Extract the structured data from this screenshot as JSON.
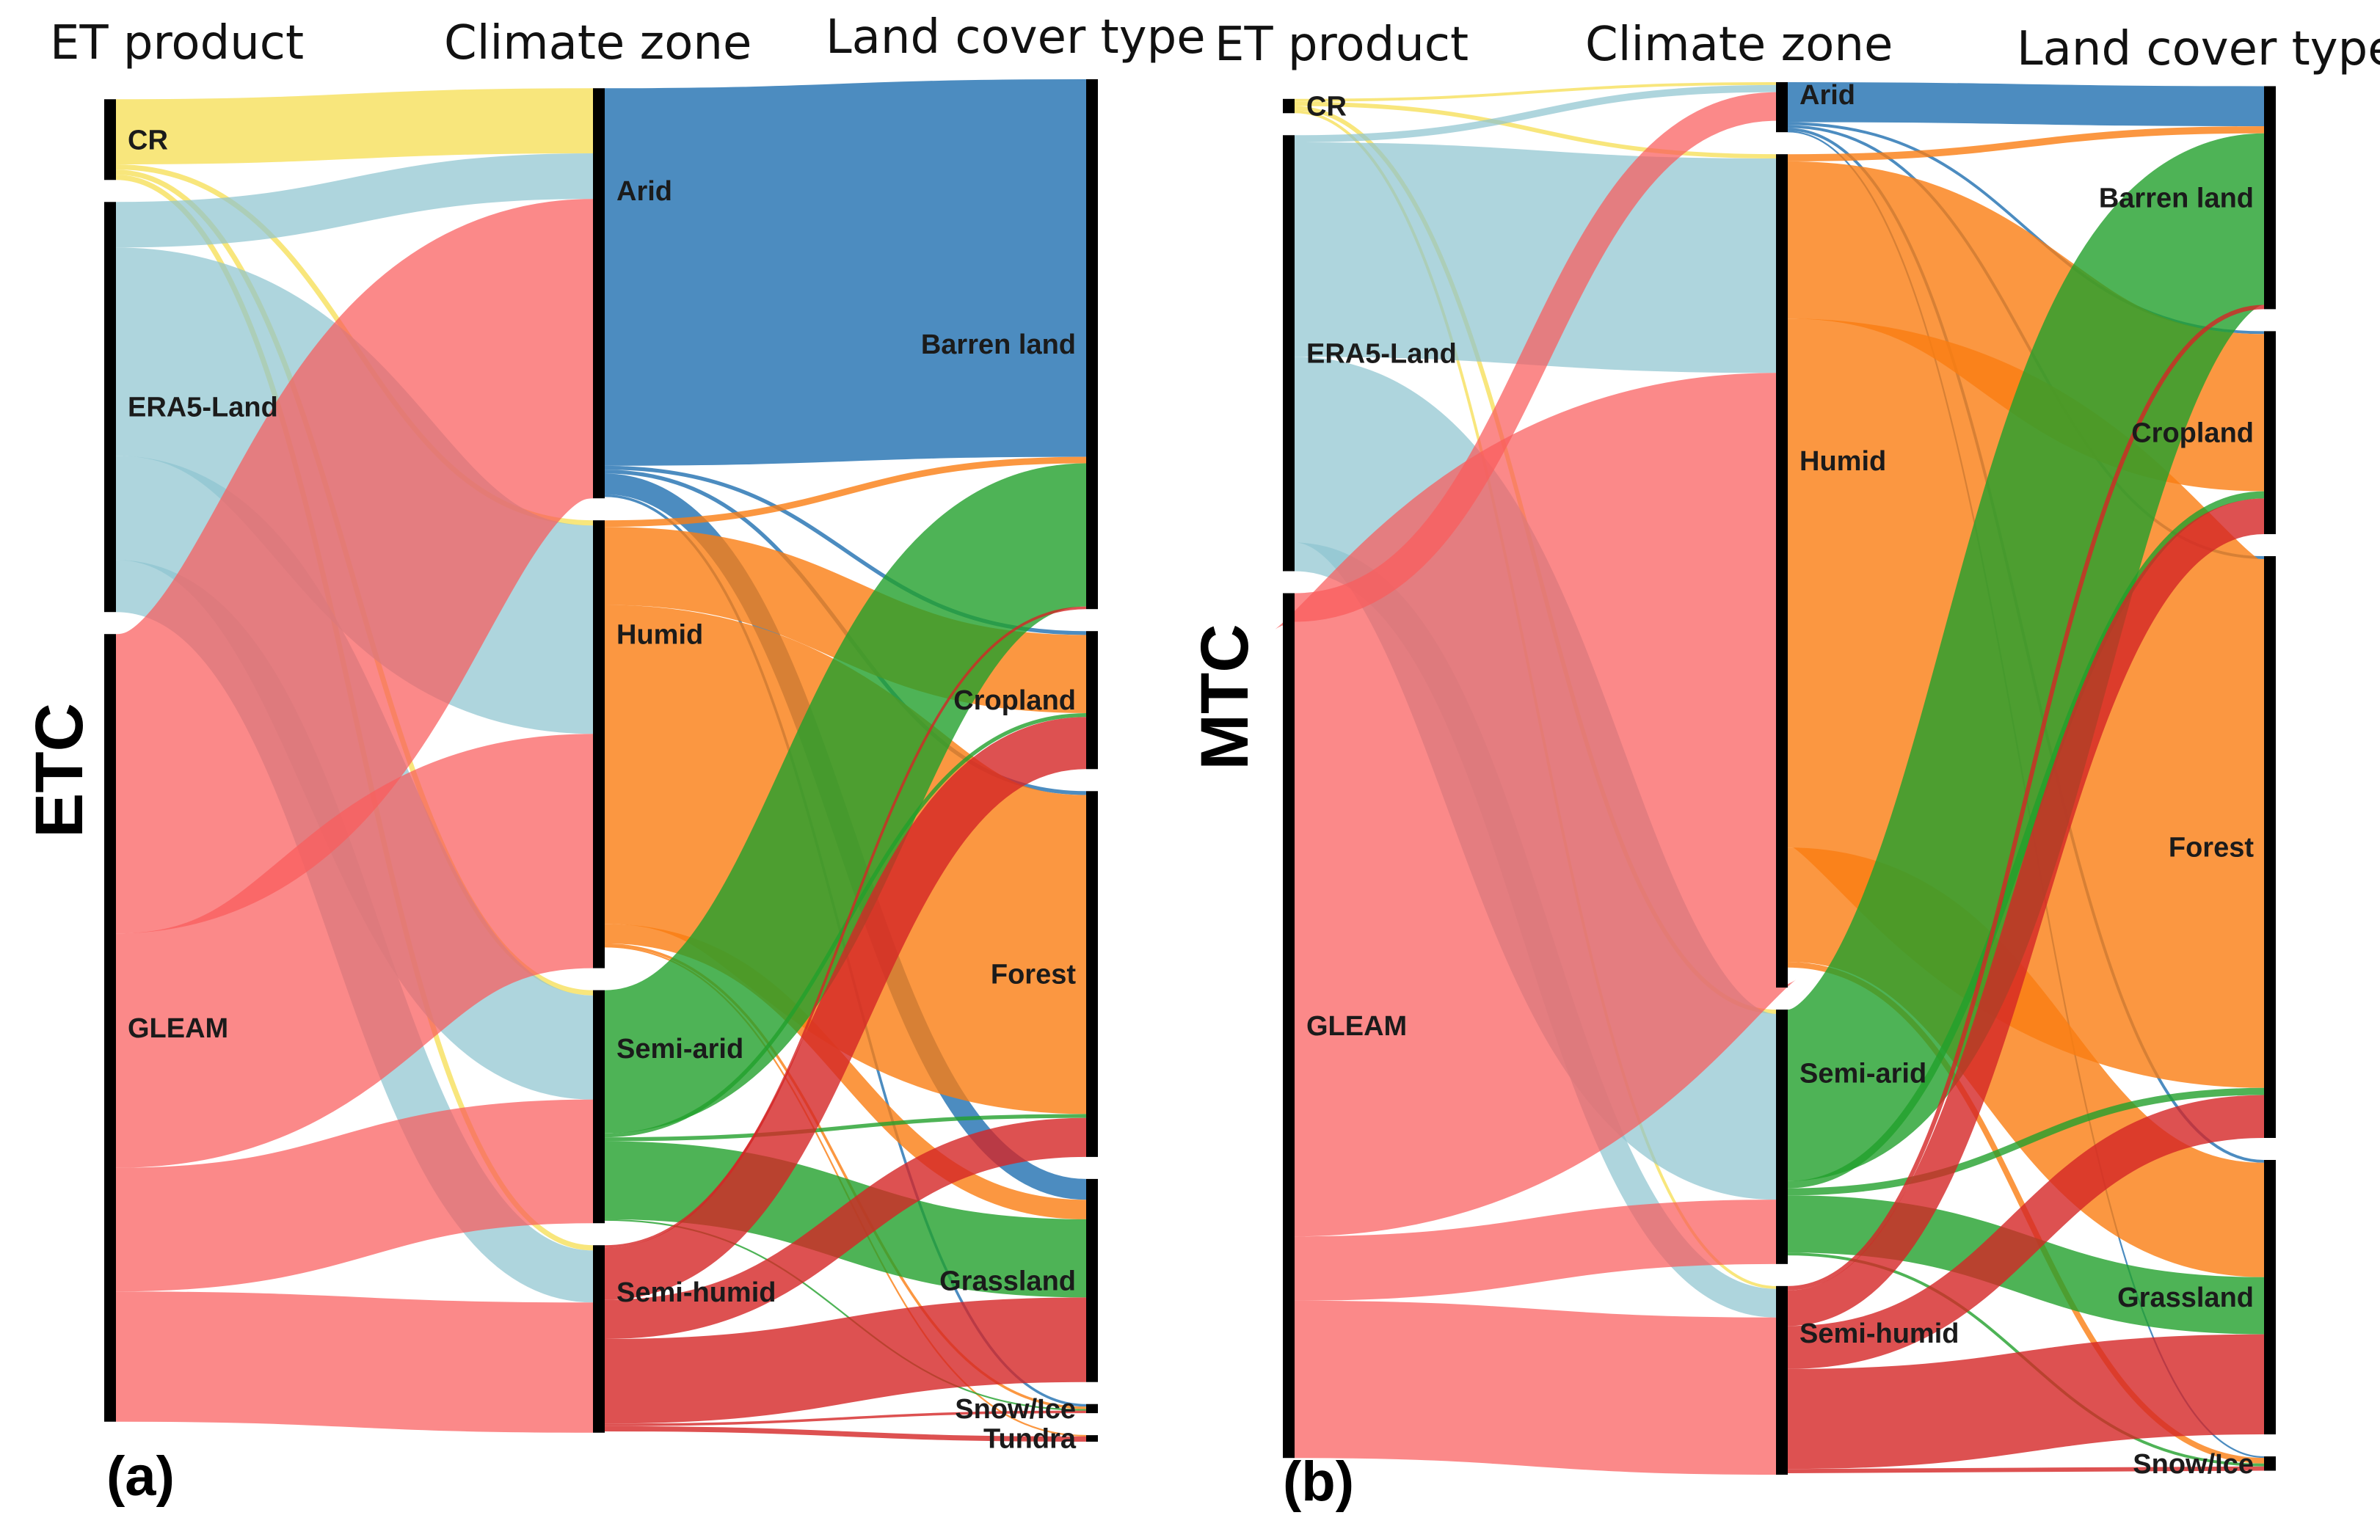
{
  "colors": {
    "products": {
      "CR": "#f5dd4a",
      "ERA5-Land": "#8fc5d0",
      "GLEAM": "#fa5b5b"
    },
    "climate": {
      "Arid": "#1f6fb0",
      "Humid": "#fa7d12",
      "Semi-arid": "#22a02c",
      "Semi-humid": "#d42525"
    }
  },
  "panels": [
    {
      "id": "a",
      "tag": "(a)",
      "side_label": "ETC",
      "headers": [
        "ET product",
        "Climate zone",
        "Land cover type"
      ],
      "chart_data": {
        "type": "sankey",
        "title": "",
        "columns": [
          "ET product",
          "Climate zone",
          "Land cover type"
        ],
        "nodes": {
          "products": [
            "CR",
            "ERA5-Land",
            "GLEAM"
          ],
          "climate": [
            "Arid",
            "Humid",
            "Semi-arid",
            "Semi-humid"
          ],
          "land": [
            "Barren land",
            "Cropland",
            "Forest",
            "Grassland",
            "Snow/Ice",
            "Tundra"
          ]
        },
        "links": [
          {
            "source": "CR",
            "target": "Arid",
            "value": 5.0
          },
          {
            "source": "CR",
            "target": "Humid",
            "value": 0.4
          },
          {
            "source": "CR",
            "target": "Semi-arid",
            "value": 0.4
          },
          {
            "source": "CR",
            "target": "Semi-humid",
            "value": 0.4
          },
          {
            "source": "ERA5-Land",
            "target": "Arid",
            "value": 3.5
          },
          {
            "source": "ERA5-Land",
            "target": "Humid",
            "value": 16.0
          },
          {
            "source": "ERA5-Land",
            "target": "Semi-arid",
            "value": 8.0
          },
          {
            "source": "ERA5-Land",
            "target": "Semi-humid",
            "value": 4.0
          },
          {
            "source": "GLEAM",
            "target": "Arid",
            "value": 23.0
          },
          {
            "source": "GLEAM",
            "target": "Humid",
            "value": 18.0
          },
          {
            "source": "GLEAM",
            "target": "Semi-arid",
            "value": 9.5
          },
          {
            "source": "GLEAM",
            "target": "Semi-humid",
            "value": 10.0
          },
          {
            "source": "Arid",
            "target": "Barren land",
            "value": 29.0
          },
          {
            "source": "Arid",
            "target": "Cropland",
            "value": 0.3
          },
          {
            "source": "Arid",
            "target": "Forest",
            "value": 0.3
          },
          {
            "source": "Arid",
            "target": "Grassland",
            "value": 1.6
          },
          {
            "source": "Arid",
            "target": "Snow/Ice",
            "value": 0.2
          },
          {
            "source": "Humid",
            "target": "Barren land",
            "value": 0.5
          },
          {
            "source": "Humid",
            "target": "Cropland",
            "value": 6.0
          },
          {
            "source": "Humid",
            "target": "Forest",
            "value": 24.5
          },
          {
            "source": "Humid",
            "target": "Grassland",
            "value": 1.5
          },
          {
            "source": "Humid",
            "target": "Snow/Ice",
            "value": 0.2
          },
          {
            "source": "Humid",
            "target": "Tundra",
            "value": 0.1
          },
          {
            "source": "Semi-arid",
            "target": "Barren land",
            "value": 11.0
          },
          {
            "source": "Semi-arid",
            "target": "Cropland",
            "value": 0.3
          },
          {
            "source": "Semi-arid",
            "target": "Forest",
            "value": 0.3
          },
          {
            "source": "Semi-arid",
            "target": "Grassland",
            "value": 6.0
          },
          {
            "source": "Semi-arid",
            "target": "Snow/Ice",
            "value": 0.1
          },
          {
            "source": "Semi-humid",
            "target": "Barren land",
            "value": 0.2
          },
          {
            "source": "Semi-humid",
            "target": "Cropland",
            "value": 4.0
          },
          {
            "source": "Semi-humid",
            "target": "Forest",
            "value": 3.0
          },
          {
            "source": "Semi-humid",
            "target": "Grassland",
            "value": 6.5
          },
          {
            "source": "Semi-humid",
            "target": "Snow/Ice",
            "value": 0.2
          },
          {
            "source": "Semi-humid",
            "target": "Tundra",
            "value": 0.4
          }
        ]
      }
    },
    {
      "id": "b",
      "tag": "(b)",
      "side_label": "MTC",
      "headers": [
        "ET product",
        "Climate zone",
        "Land cover type"
      ],
      "chart_data": {
        "type": "sankey",
        "title": "",
        "columns": [
          "ET product",
          "Climate zone",
          "Land cover type"
        ],
        "nodes": {
          "products": [
            "CR",
            "ERA5-Land",
            "GLEAM"
          ],
          "climate": [
            "Arid",
            "Humid",
            "Semi-arid",
            "Semi-humid"
          ],
          "land": [
            "Barren land",
            "Cropland",
            "Forest",
            "Grassland",
            "Snow/Ice"
          ]
        },
        "links": [
          {
            "source": "CR",
            "target": "Arid",
            "value": 0.2
          },
          {
            "source": "CR",
            "target": "Humid",
            "value": 0.3
          },
          {
            "source": "CR",
            "target": "Semi-arid",
            "value": 0.3
          },
          {
            "source": "CR",
            "target": "Semi-humid",
            "value": 0.2
          },
          {
            "source": "ERA5-Land",
            "target": "Arid",
            "value": 0.5
          },
          {
            "source": "ERA5-Land",
            "target": "Humid",
            "value": 15.0
          },
          {
            "source": "ERA5-Land",
            "target": "Semi-arid",
            "value": 13.0
          },
          {
            "source": "ERA5-Land",
            "target": "Semi-humid",
            "value": 2.0
          },
          {
            "source": "GLEAM",
            "target": "Arid",
            "value": 2.0
          },
          {
            "source": "GLEAM",
            "target": "Humid",
            "value": 43.0
          },
          {
            "source": "GLEAM",
            "target": "Semi-arid",
            "value": 4.5
          },
          {
            "source": "GLEAM",
            "target": "Semi-humid",
            "value": 11.0
          },
          {
            "source": "Arid",
            "target": "Barren land",
            "value": 2.8
          },
          {
            "source": "Arid",
            "target": "Cropland",
            "value": 0.2
          },
          {
            "source": "Arid",
            "target": "Forest",
            "value": 0.2
          },
          {
            "source": "Arid",
            "target": "Grassland",
            "value": 0.2
          },
          {
            "source": "Arid",
            "target": "Snow/Ice",
            "value": 0.1
          },
          {
            "source": "Humid",
            "target": "Barren land",
            "value": 0.5
          },
          {
            "source": "Humid",
            "target": "Cropland",
            "value": 11.0
          },
          {
            "source": "Humid",
            "target": "Forest",
            "value": 37.0
          },
          {
            "source": "Humid",
            "target": "Grassland",
            "value": 8.0
          },
          {
            "source": "Humid",
            "target": "Snow/Ice",
            "value": 0.4
          },
          {
            "source": "Semi-arid",
            "target": "Barren land",
            "value": 12.0
          },
          {
            "source": "Semi-arid",
            "target": "Cropland",
            "value": 0.5
          },
          {
            "source": "Semi-arid",
            "target": "Forest",
            "value": 0.5
          },
          {
            "source": "Semi-arid",
            "target": "Grassland",
            "value": 4.0
          },
          {
            "source": "Semi-arid",
            "target": "Snow/Ice",
            "value": 0.2
          },
          {
            "source": "Semi-humid",
            "target": "Barren land",
            "value": 0.3
          },
          {
            "source": "Semi-humid",
            "target": "Cropland",
            "value": 2.5
          },
          {
            "source": "Semi-humid",
            "target": "Forest",
            "value": 3.0
          },
          {
            "source": "Semi-humid",
            "target": "Grassland",
            "value": 7.0
          },
          {
            "source": "Semi-humid",
            "target": "Snow/Ice",
            "value": 0.3
          }
        ]
      }
    }
  ]
}
